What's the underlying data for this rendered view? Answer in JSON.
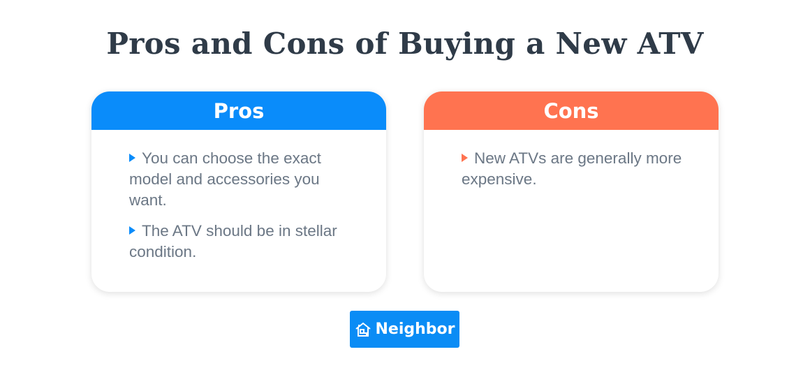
{
  "title": "Pros and Cons of Buying a New ATV",
  "colors": {
    "pros": "#0a8cfa",
    "cons": "#ff7350",
    "title": "#2f3b48",
    "text": "#6b7785"
  },
  "pros": {
    "heading": "Pros",
    "items": [
      "You can choose the exact model and accessories you want.",
      "The ATV should be in stellar condition."
    ]
  },
  "cons": {
    "heading": "Cons",
    "items": [
      "New ATVs are generally more expensive."
    ]
  },
  "logo": {
    "text": "Neighbor",
    "icon": "house-icon"
  }
}
